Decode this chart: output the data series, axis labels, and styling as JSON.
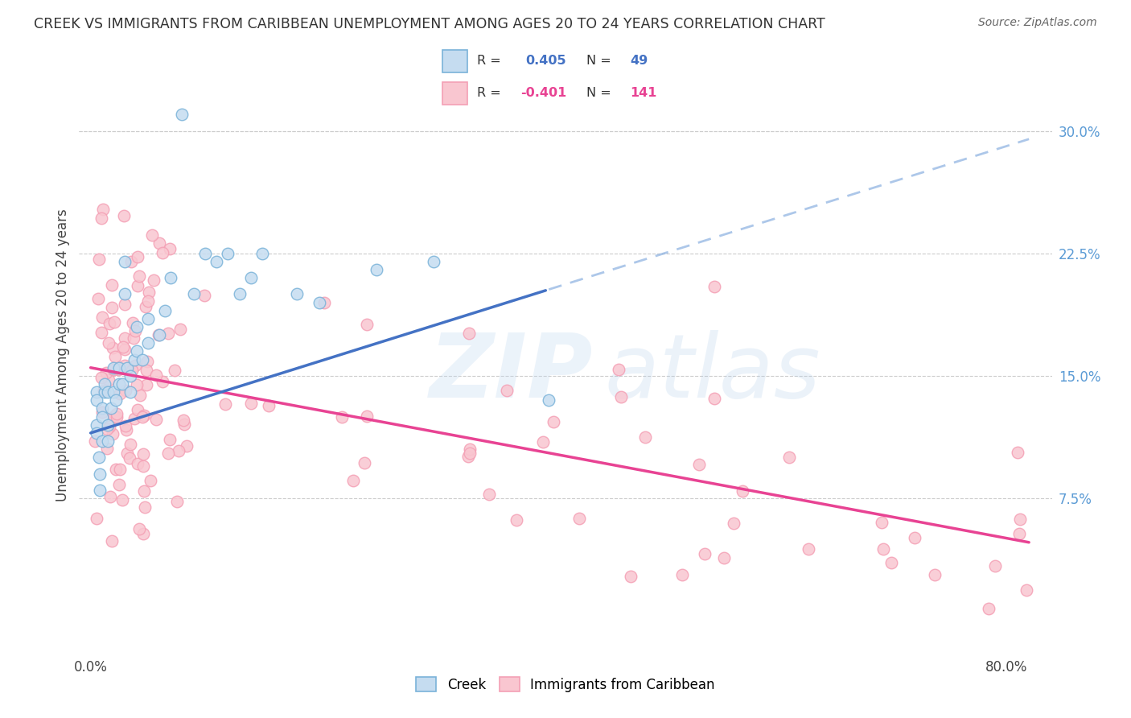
{
  "title": "CREEK VS IMMIGRANTS FROM CARIBBEAN UNEMPLOYMENT AMONG AGES 20 TO 24 YEARS CORRELATION CHART",
  "source": "Source: ZipAtlas.com",
  "ylabel": "Unemployment Among Ages 20 to 24 years",
  "creek_R": 0.405,
  "creek_N": 49,
  "caribbean_R": -0.401,
  "caribbean_N": 141,
  "creek_color": "#7ab3d9",
  "creek_face": "#c5dcf0",
  "caribbean_color": "#f4a0b5",
  "caribbean_face": "#f9c6d0",
  "trend_blue": "#4472c4",
  "trend_blue_dash": "#8ab0e0",
  "trend_pink": "#e84393",
  "watermark_zip": "ZIP",
  "watermark_atlas": "atlas",
  "background": "#ffffff",
  "grid_color": "#cccccc",
  "legend_border": "#cccccc",
  "right_axis_color": "#5b9bd5",
  "title_color": "#333333",
  "source_color": "#666666"
}
